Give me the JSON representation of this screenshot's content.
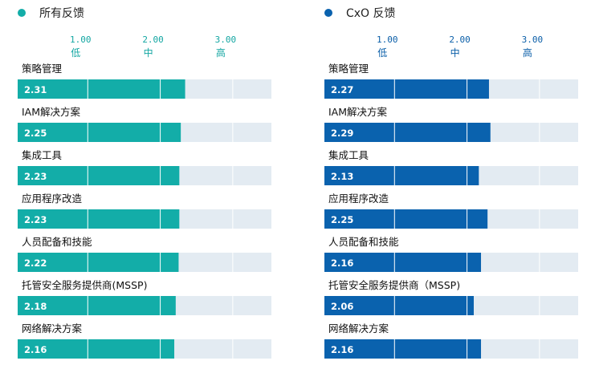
{
  "chart_data": [
    {
      "type": "bar",
      "legend": "所有反馈",
      "color": "#13ada8",
      "track_color": "#e3ebf2",
      "xlim": [
        0,
        3.5
      ],
      "ticks": [
        {
          "value": 1.0,
          "number": "1.00",
          "word": "低"
        },
        {
          "value": 2.0,
          "number": "2.00",
          "word": "中"
        },
        {
          "value": 3.0,
          "number": "3.00",
          "word": "高"
        }
      ],
      "categories": [
        "策略管理",
        "IAM解决方案",
        "集成工具",
        "应用程序改造",
        "人员配备和技能",
        "托管安全服务提供商(MSSP)",
        "网络解决方案"
      ],
      "values": [
        2.31,
        2.25,
        2.23,
        2.23,
        2.22,
        2.18,
        2.16
      ],
      "value_labels": [
        "2.31",
        "2.25",
        "2.23",
        "2.23",
        "2.22",
        "2.18",
        "2.16"
      ]
    },
    {
      "type": "bar",
      "legend": "CxO 反馈",
      "color": "#0a62ae",
      "track_color": "#e3ebf2",
      "xlim": [
        0,
        3.5
      ],
      "ticks": [
        {
          "value": 1.0,
          "number": "1.00",
          "word": "低"
        },
        {
          "value": 2.0,
          "number": "2.00",
          "word": "中"
        },
        {
          "value": 3.0,
          "number": "3.00",
          "word": "高"
        }
      ],
      "categories": [
        "策略管理",
        "IAM解决方案",
        "集成工具",
        "应用程序改造",
        "人员配备和技能",
        "托管安全服务提供商（MSSP)",
        "网络解决方案"
      ],
      "values": [
        2.27,
        2.29,
        2.13,
        2.25,
        2.16,
        2.06,
        2.16
      ],
      "value_labels": [
        "2.27",
        "2.29",
        "2.13",
        "2.25",
        "2.16",
        "2.06",
        "2.16"
      ]
    }
  ]
}
